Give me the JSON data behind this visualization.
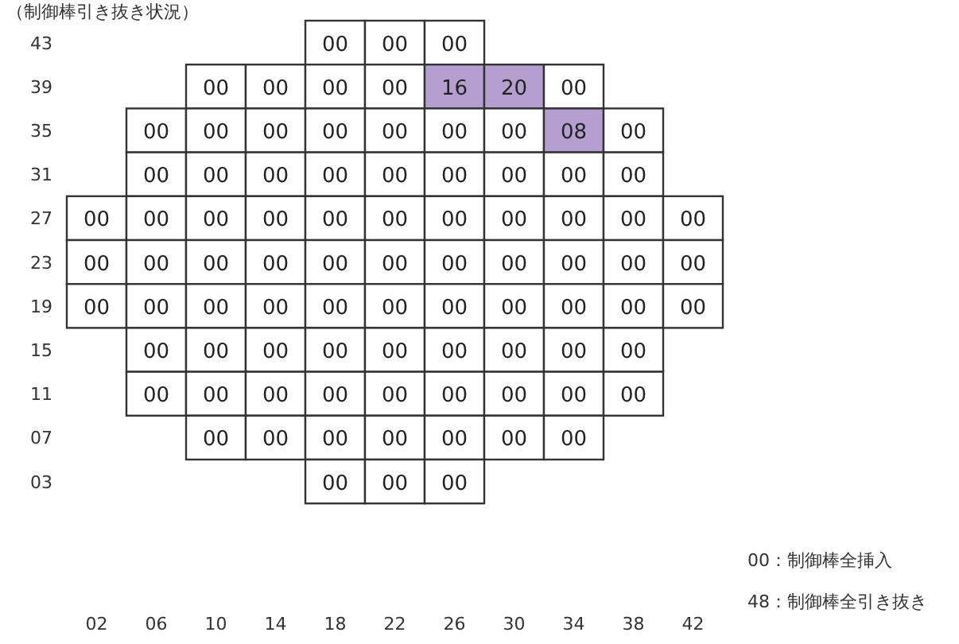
{
  "chart_data": {
    "type": "heatmap",
    "title": "（制御棒引き抜き状況）",
    "categories": [
      "02",
      "06",
      "10",
      "14",
      "18",
      "22",
      "26",
      "30",
      "34",
      "38",
      "42"
    ],
    "y_categories": [
      "43",
      "39",
      "35",
      "31",
      "27",
      "23",
      "19",
      "15",
      "11",
      "07",
      "03"
    ],
    "cells": [
      [
        null,
        null,
        null,
        null,
        0,
        0,
        0,
        null,
        null,
        null,
        null
      ],
      [
        null,
        null,
        0,
        0,
        0,
        0,
        16,
        20,
        0,
        null,
        null
      ],
      [
        null,
        0,
        0,
        0,
        0,
        0,
        0,
        0,
        8,
        0,
        null
      ],
      [
        null,
        0,
        0,
        0,
        0,
        0,
        0,
        0,
        0,
        0,
        null
      ],
      [
        0,
        0,
        0,
        0,
        0,
        0,
        0,
        0,
        0,
        0,
        0
      ],
      [
        0,
        0,
        0,
        0,
        0,
        0,
        0,
        0,
        0,
        0,
        0
      ],
      [
        0,
        0,
        0,
        0,
        0,
        0,
        0,
        0,
        0,
        0,
        0
      ],
      [
        null,
        0,
        0,
        0,
        0,
        0,
        0,
        0,
        0,
        0,
        null
      ],
      [
        null,
        0,
        0,
        0,
        0,
        0,
        0,
        0,
        0,
        0,
        null
      ],
      [
        null,
        null,
        0,
        0,
        0,
        0,
        0,
        0,
        0,
        null,
        null
      ],
      [
        null,
        null,
        null,
        null,
        0,
        0,
        0,
        null,
        null,
        null,
        null
      ]
    ],
    "cell_labels": [
      [
        null,
        null,
        null,
        null,
        "00",
        "00",
        "00",
        null,
        null,
        null,
        null
      ],
      [
        null,
        null,
        "00",
        "00",
        "00",
        "00",
        "16",
        "20",
        "00",
        null,
        null
      ],
      [
        null,
        "00",
        "00",
        "00",
        "00",
        "00",
        "00",
        "00",
        "08",
        "00",
        null
      ],
      [
        null,
        "00",
        "00",
        "00",
        "00",
        "00",
        "00",
        "00",
        "00",
        "00",
        null
      ],
      [
        "00",
        "00",
        "00",
        "00",
        "00",
        "00",
        "00",
        "00",
        "00",
        "00",
        "00"
      ],
      [
        "00",
        "00",
        "00",
        "00",
        "00",
        "00",
        "00",
        "00",
        "00",
        "00",
        "00"
      ],
      [
        "00",
        "00",
        "00",
        "00",
        "00",
        "00",
        "00",
        "00",
        "00",
        "00",
        "00"
      ],
      [
        null,
        "00",
        "00",
        "00",
        "00",
        "00",
        "00",
        "00",
        "00",
        "00",
        null
      ],
      [
        null,
        "00",
        "00",
        "00",
        "00",
        "00",
        "00",
        "00",
        "00",
        "00",
        null
      ],
      [
        null,
        null,
        "00",
        "00",
        "00",
        "00",
        "00",
        "00",
        "00",
        null,
        null
      ],
      [
        null,
        null,
        null,
        null,
        "00",
        "00",
        "00",
        null,
        null,
        null,
        null
      ]
    ],
    "annotations": [
      "00：制御棒全挿入",
      "48：制御棒全引き抜き"
    ]
  }
}
